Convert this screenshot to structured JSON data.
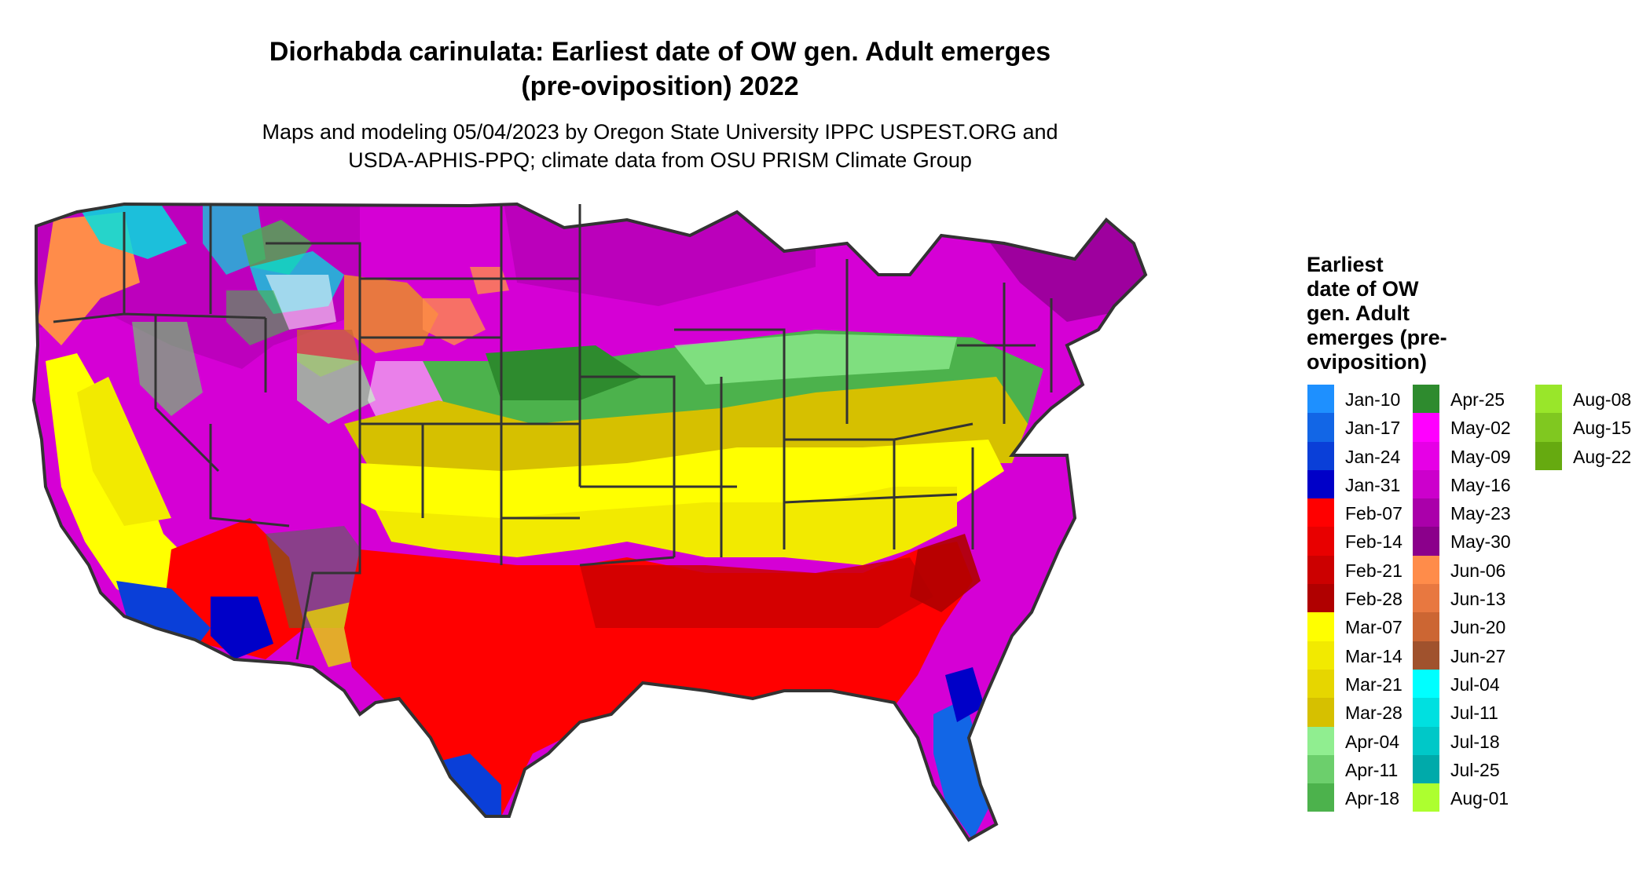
{
  "title": {
    "line1": "Diorhabda carinulata: Earliest date of OW gen. Adult emerges",
    "line2": "(pre-oviposition) 2022"
  },
  "subtitle": {
    "line1": "Maps and modeling 05/04/2023 by Oregon State University IPPC USPEST.ORG and",
    "line2": "USDA-APHIS-PPQ; climate data from OSU PRISM Climate Group"
  },
  "legend": {
    "title_lines": [
      "Earliest",
      "date of OW",
      "gen. Adult",
      "emerges (pre-",
      "oviposition)"
    ],
    "items": [
      {
        "label": "Jan-10",
        "color": "#1e90ff"
      },
      {
        "label": "Jan-17",
        "color": "#1266e6"
      },
      {
        "label": "Jan-24",
        "color": "#0a3fd8"
      },
      {
        "label": "Jan-31",
        "color": "#0000c8"
      },
      {
        "label": "Feb-07",
        "color": "#ff0000"
      },
      {
        "label": "Feb-14",
        "color": "#e80000"
      },
      {
        "label": "Feb-21",
        "color": "#cc0000"
      },
      {
        "label": "Feb-28",
        "color": "#b00000"
      },
      {
        "label": "Mar-07",
        "color": "#ffff00"
      },
      {
        "label": "Mar-14",
        "color": "#f2ea00"
      },
      {
        "label": "Mar-21",
        "color": "#e6d600"
      },
      {
        "label": "Mar-28",
        "color": "#d6c000"
      },
      {
        "label": "Apr-04",
        "color": "#90ee90"
      },
      {
        "label": "Apr-11",
        "color": "#6ccf6c"
      },
      {
        "label": "Apr-18",
        "color": "#4cb24c"
      },
      {
        "label": "Apr-25",
        "color": "#2e8b2e"
      },
      {
        "label": "May-02",
        "color": "#ff00ff"
      },
      {
        "label": "May-09",
        "color": "#e600e6"
      },
      {
        "label": "May-16",
        "color": "#cc00cc"
      },
      {
        "label": "May-23",
        "color": "#aa00aa"
      },
      {
        "label": "May-30",
        "color": "#8b008b"
      },
      {
        "label": "Jun-06",
        "color": "#ff8c4a"
      },
      {
        "label": "Jun-13",
        "color": "#e87840"
      },
      {
        "label": "Jun-20",
        "color": "#cc6633"
      },
      {
        "label": "Jun-27",
        "color": "#a0522d"
      },
      {
        "label": "Jul-04",
        "color": "#00ffff"
      },
      {
        "label": "Jul-11",
        "color": "#00e0e0"
      },
      {
        "label": "Jul-18",
        "color": "#00c8c8"
      },
      {
        "label": "Jul-25",
        "color": "#00aaaa"
      },
      {
        "label": "Aug-01",
        "color": "#adff2f"
      },
      {
        "label": "Aug-08",
        "color": "#99e62a"
      },
      {
        "label": "Aug-15",
        "color": "#80c820"
      },
      {
        "label": "Aug-22",
        "color": "#66aa10"
      }
    ]
  }
}
